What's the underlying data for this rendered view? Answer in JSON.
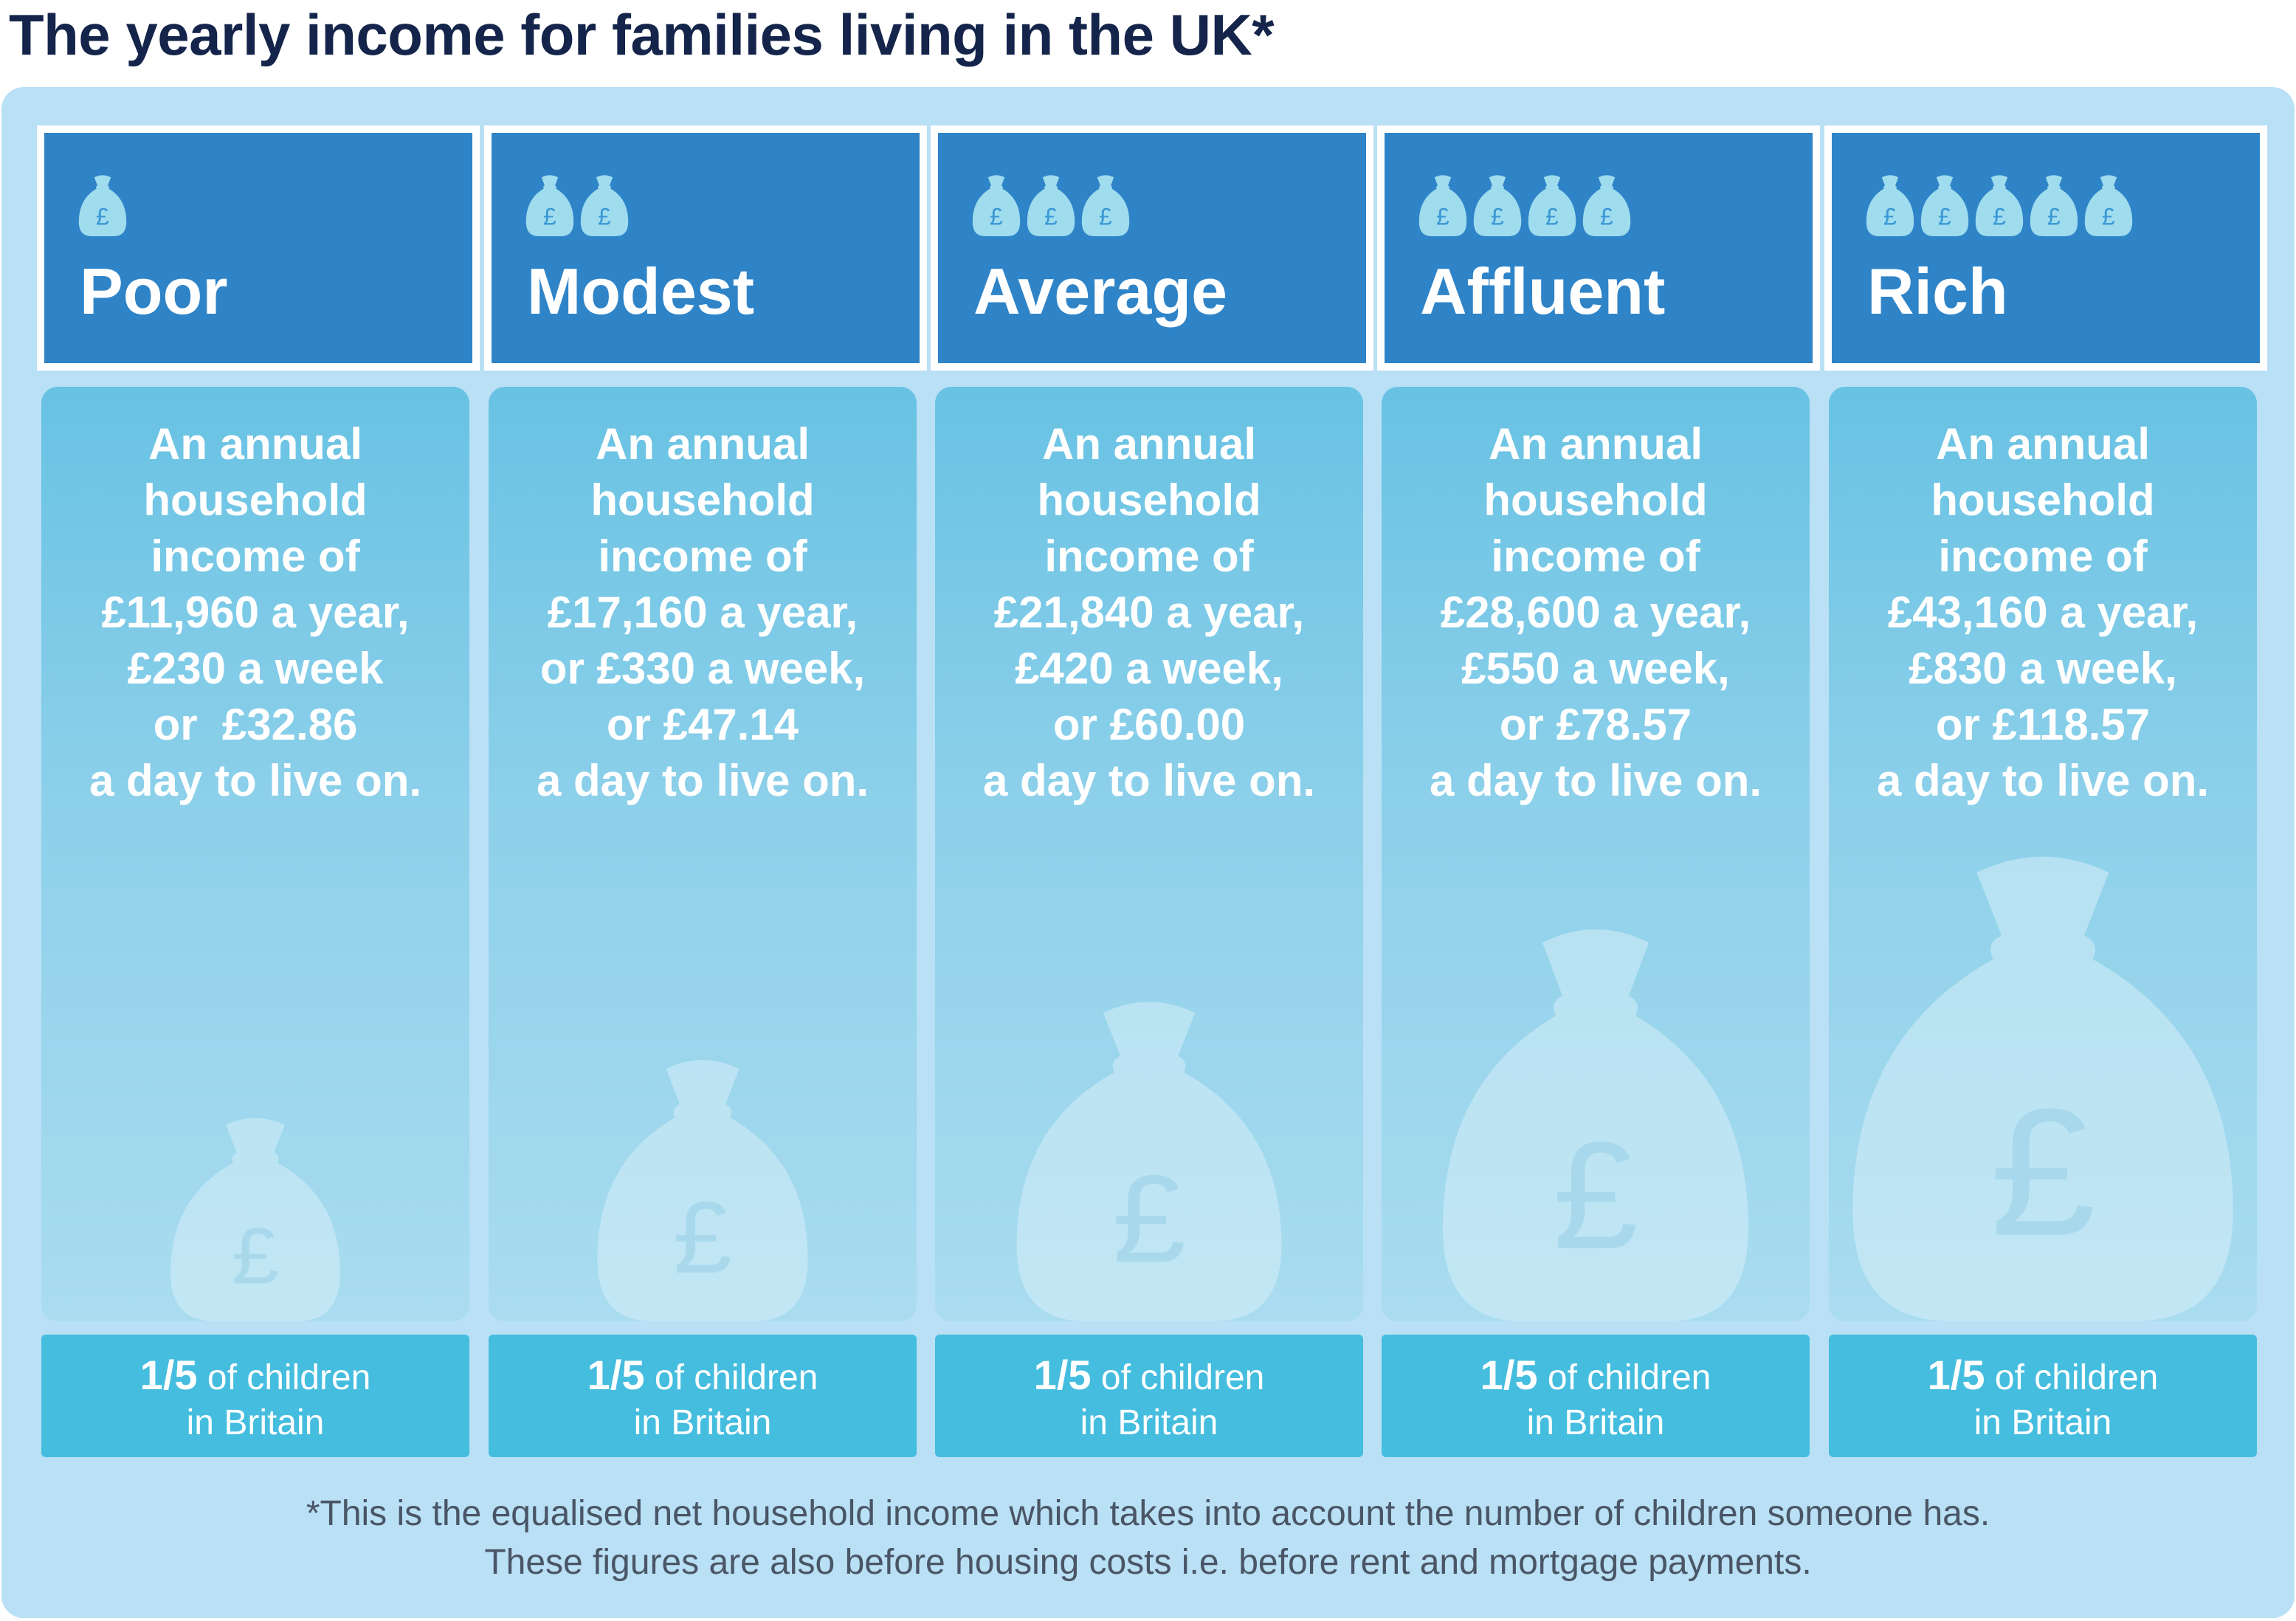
{
  "title": "The yearly income for families living in the UK*",
  "colors": {
    "title": "#14244a",
    "panel": "#b9e0f5",
    "header": "#2f84c8",
    "card_top": "#68c2e3",
    "card_bottom": "#aadcf0",
    "footer": "#45bddf",
    "icon": "#9fdcee"
  },
  "tiers": [
    {
      "name": "Poor",
      "bag_count": 1,
      "income_lines": [
        "An annual",
        "household",
        "income of",
        "£11,960 a year,",
        "£230 a week",
        "or  £32.86",
        "a day to live on."
      ],
      "share": "1/5",
      "share_suffix": " of children",
      "share_line2": "in Britain",
      "icon": "money-bag-icon"
    },
    {
      "name": "Modest",
      "bag_count": 2,
      "income_lines": [
        "An annual",
        "household",
        "income of",
        "£17,160 a year,",
        "or £330 a week,",
        "or £47.14",
        "a day to live on."
      ],
      "share": "1/5",
      "share_suffix": " of children",
      "share_line2": "in Britain",
      "icon": "money-bag-icon"
    },
    {
      "name": "Average",
      "bag_count": 3,
      "income_lines": [
        "An annual",
        "household",
        "income of",
        "£21,840 a year,",
        "£420 a week,",
        "or £60.00",
        "a day to live on."
      ],
      "share": "1/5",
      "share_suffix": " of children",
      "share_line2": "in Britain",
      "icon": "money-bag-icon"
    },
    {
      "name": "Affluent",
      "bag_count": 4,
      "income_lines": [
        "An annual",
        "household",
        "income of",
        "£28,600 a year,",
        "£550 a week,",
        "or £78.57",
        "a day to live on."
      ],
      "share": "1/5",
      "share_suffix": " of children",
      "share_line2": "in Britain",
      "icon": "money-bag-icon"
    },
    {
      "name": "Rich",
      "bag_count": 5,
      "income_lines": [
        "An annual",
        "household",
        "income of",
        "£43,160 a year,",
        "£830 a week,",
        "or £118.57",
        "a day to live on."
      ],
      "share": "1/5",
      "share_suffix": " of children",
      "share_line2": "in Britain",
      "icon": "money-bag-icon"
    }
  ],
  "footnote": [
    "*This is the equalised net household income which takes into account the number of children someone has.",
    "These figures are also before housing costs i.e. before rent and mortgage payments."
  ]
}
